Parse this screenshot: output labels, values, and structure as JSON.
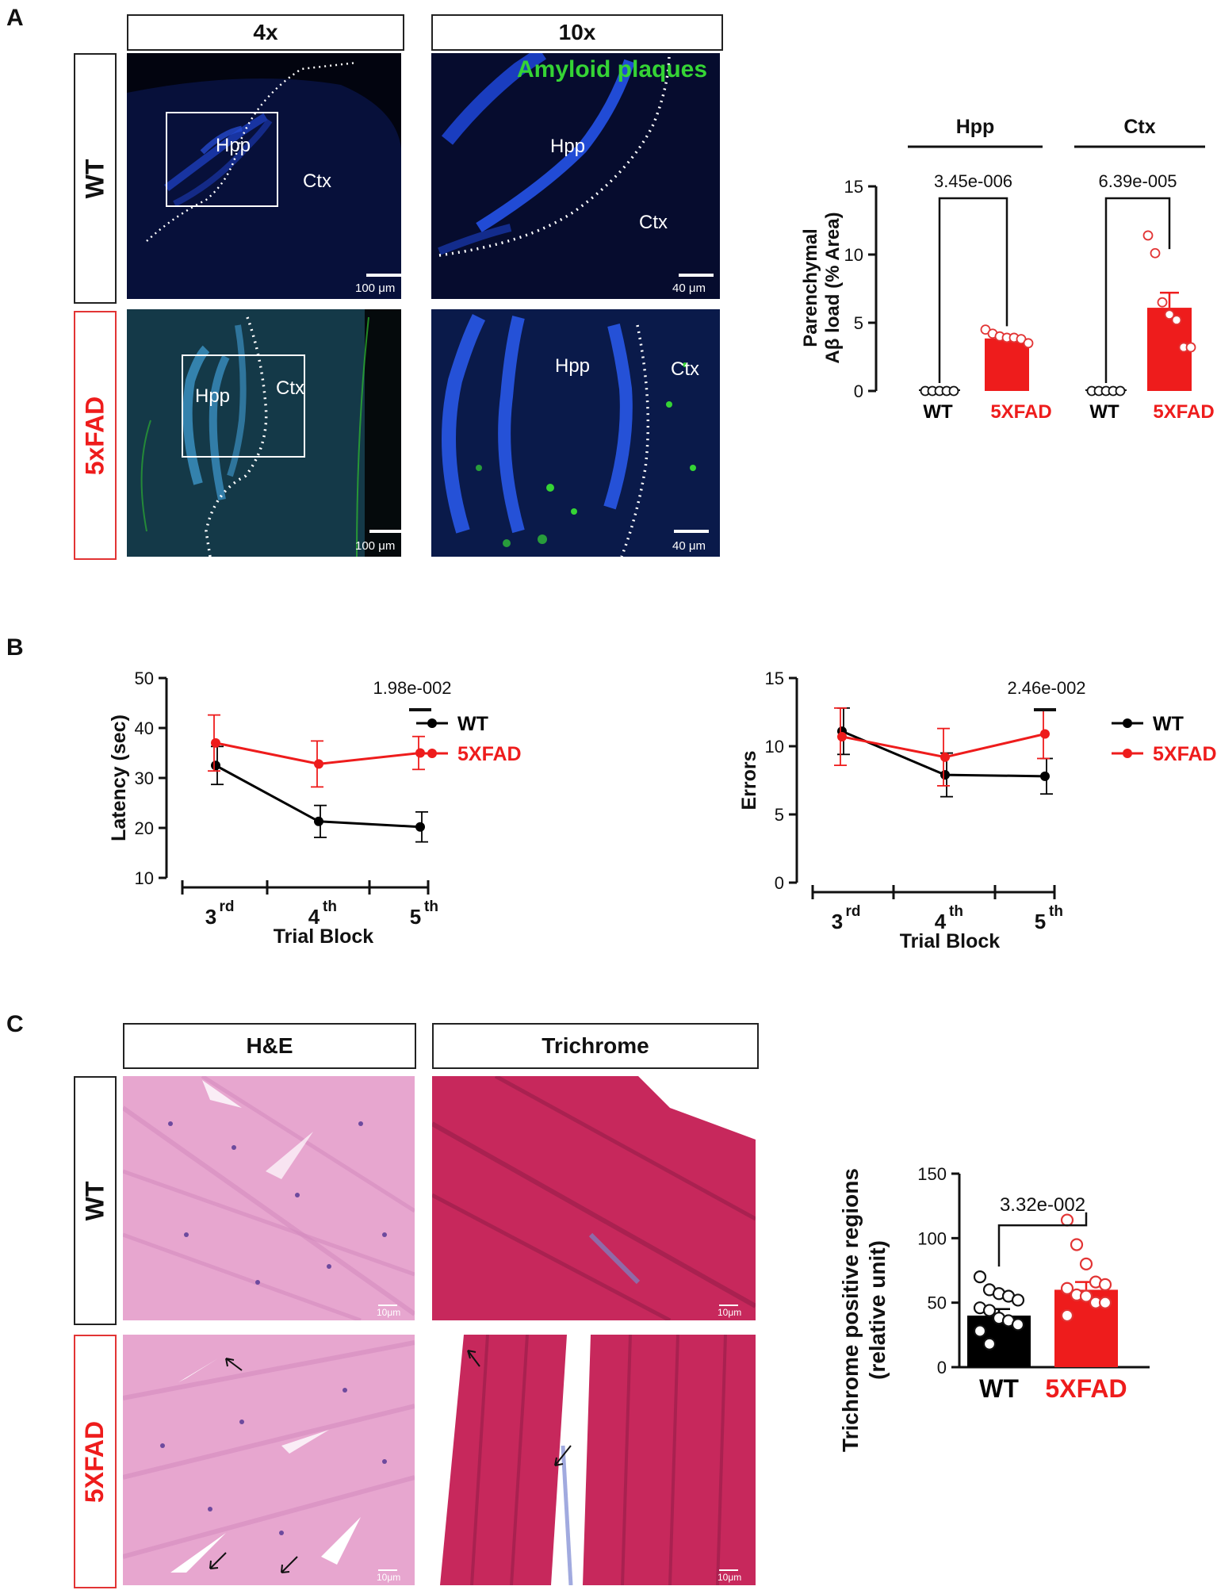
{
  "panels": {
    "a": {
      "letter": "A",
      "columns": [
        "4x",
        "10x"
      ],
      "rows": [
        "WT",
        "5xFAD"
      ],
      "overlay_title": "Amyloid plaques",
      "region_labels": {
        "hpp": "Hpp",
        "ctx": "Ctx"
      },
      "scale_bars": {
        "low": "100 μm",
        "high": "40 μm"
      }
    },
    "b": {
      "letter": "B"
    },
    "c": {
      "letter": "C",
      "columns": [
        "H&E",
        "Trichrome"
      ],
      "rows": [
        "WT",
        "5XFAD"
      ],
      "scale_bar": "10μm"
    }
  },
  "colors": {
    "wt": "#000000",
    "fad": "#ee1c1c",
    "green": "#35d435",
    "blue": "#2244cc"
  },
  "chart_data": [
    {
      "id": "amyloid",
      "type": "bar",
      "groups": [
        "Hpp",
        "Ctx"
      ],
      "categories": [
        "WT",
        "5XFAD",
        "WT",
        "5XFAD"
      ],
      "series": [
        {
          "name": "WT",
          "group": "Hpp",
          "mean": 0,
          "sem": 0,
          "points": [
            0,
            0,
            0,
            0,
            0
          ]
        },
        {
          "name": "5XFAD",
          "group": "Hpp",
          "mean": 3.85,
          "sem": 0.2,
          "points": [
            4.5,
            4.2,
            4.0,
            3.9,
            3.9,
            3.8,
            3.5
          ]
        },
        {
          "name": "WT",
          "group": "Ctx",
          "mean": 0,
          "sem": 0,
          "points": [
            0,
            0,
            0,
            0,
            0
          ]
        },
        {
          "name": "5XFAD",
          "group": "Ctx",
          "mean": 6.1,
          "sem": 1.1,
          "points": [
            11.4,
            10.1,
            6.5,
            5.6,
            5.2,
            3.2,
            3.2
          ]
        }
      ],
      "pvalues": [
        "3.45e-006",
        "6.39e-005"
      ],
      "ylabel_line1": "Parenchymal",
      "ylabel_line2": "Aβ load (% Area)",
      "ylim": [
        0,
        15
      ],
      "yticks": [
        0,
        5,
        10,
        15
      ]
    },
    {
      "id": "latency",
      "type": "line",
      "x": [
        "3",
        "4",
        "5"
      ],
      "x_suffix": [
        "rd",
        "th",
        "th"
      ],
      "xlabel": "Trial Block",
      "ylabel": "Latency (sec)",
      "ylim": [
        10,
        50
      ],
      "yticks": [
        10,
        20,
        30,
        40,
        50
      ],
      "series": [
        {
          "name": "WT",
          "values": [
            32.5,
            21.3,
            20.2
          ],
          "err": [
            3.8,
            3.2,
            3.0
          ]
        },
        {
          "name": "5XFAD",
          "values": [
            37.0,
            32.8,
            35.0
          ],
          "err": [
            5.6,
            4.6,
            3.3
          ]
        }
      ],
      "pvalue": "1.98e-002",
      "legend": [
        "WT",
        "5XFAD"
      ]
    },
    {
      "id": "errors",
      "type": "line",
      "x": [
        "3",
        "4",
        "5"
      ],
      "x_suffix": [
        "rd",
        "th",
        "th"
      ],
      "xlabel": "Trial Block",
      "ylabel": "Errors",
      "ylim": [
        0,
        15
      ],
      "yticks": [
        0,
        5,
        10,
        15
      ],
      "series": [
        {
          "name": "WT",
          "values": [
            11.1,
            7.9,
            7.8
          ],
          "err": [
            1.7,
            1.6,
            1.3
          ]
        },
        {
          "name": "5XFAD",
          "values": [
            10.7,
            9.2,
            10.9
          ],
          "err": [
            2.1,
            2.1,
            1.8
          ]
        }
      ],
      "pvalue": "2.46e-002",
      "legend": [
        "WT",
        "5XFAD"
      ]
    },
    {
      "id": "trichrome",
      "type": "bar",
      "categories": [
        "WT",
        "5XFAD"
      ],
      "series": [
        {
          "name": "WT",
          "mean": 40,
          "sem": 5,
          "points": [
            70,
            60,
            57,
            55,
            52,
            46,
            44,
            38,
            36,
            33,
            28,
            18
          ]
        },
        {
          "name": "5XFAD",
          "mean": 60,
          "sem": 6,
          "points": [
            114,
            95,
            80,
            66,
            64,
            61,
            56,
            55,
            50,
            50,
            40
          ]
        }
      ],
      "pvalue": "3.32e-002",
      "ylabel_line1": "Trichrome positive regions",
      "ylabel_line2": "(relative unit)",
      "ylim": [
        0,
        150
      ],
      "yticks": [
        0,
        50,
        100,
        150
      ]
    }
  ]
}
